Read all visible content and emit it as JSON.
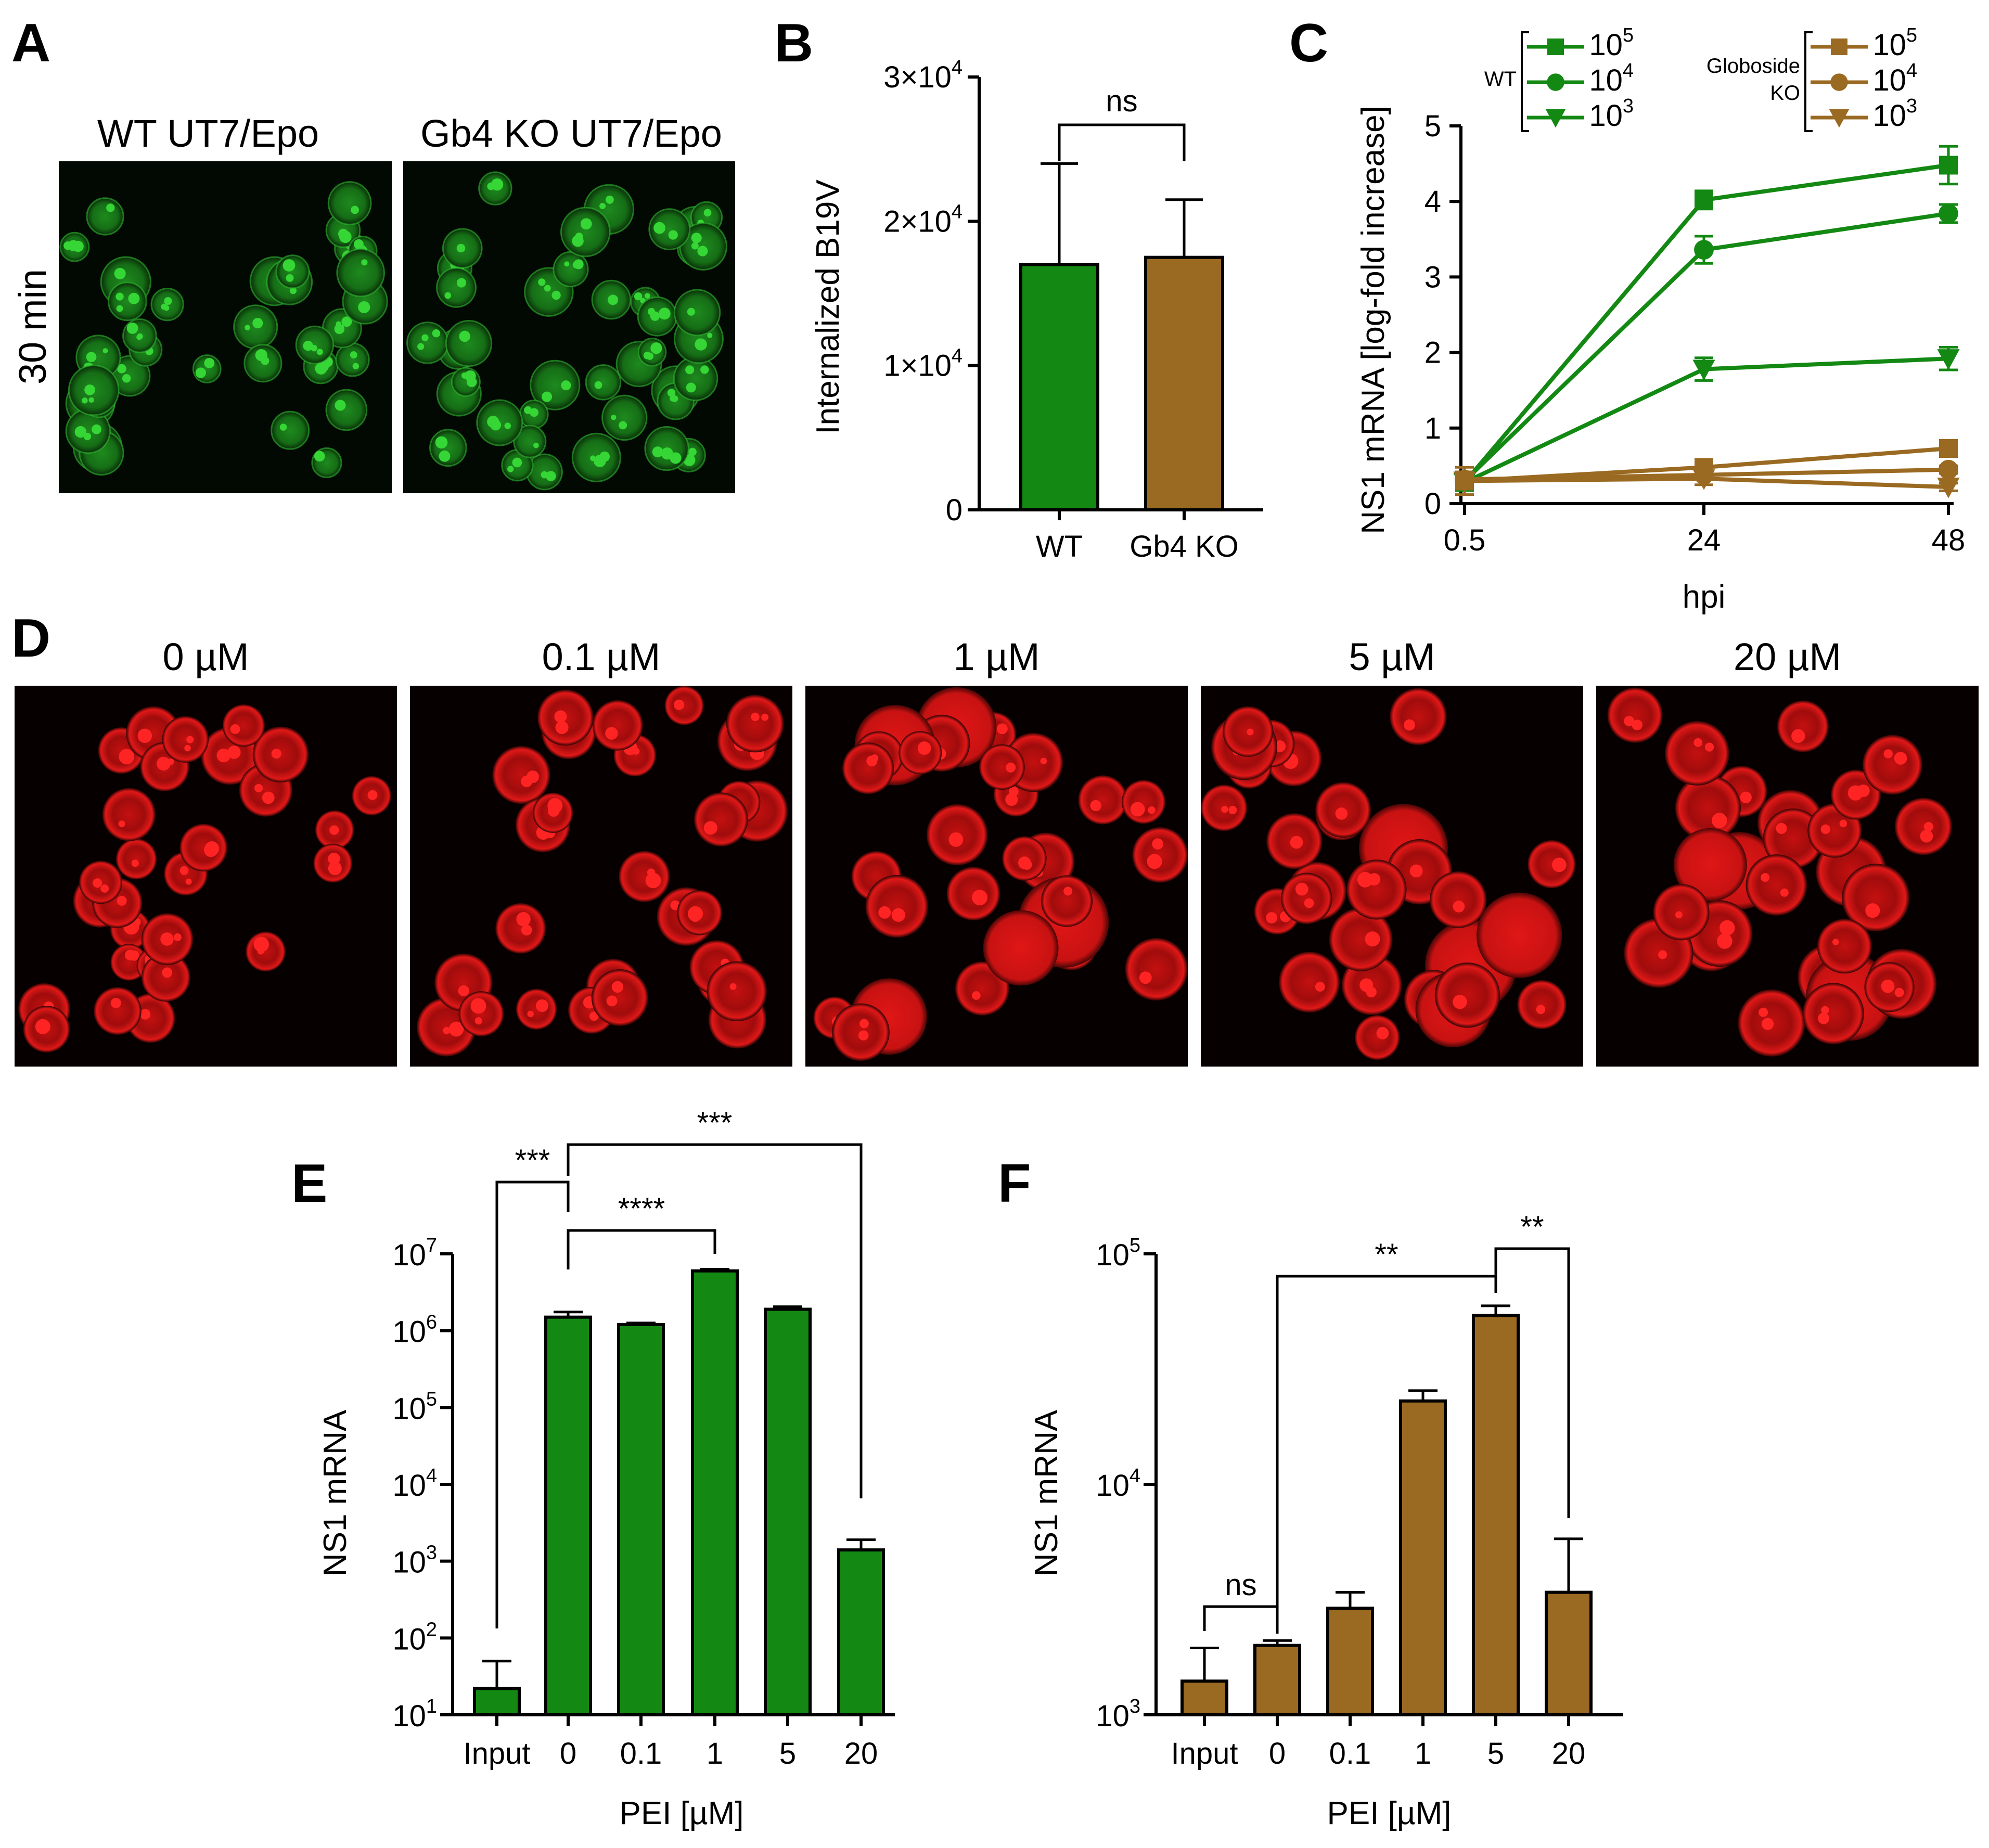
{
  "figure": {
    "panel_labels": [
      "A",
      "B",
      "C",
      "D",
      "E",
      "F"
    ],
    "colors": {
      "wt": "#138913",
      "ko": "#9a6a22",
      "green_cells": "#35d635",
      "red_cells": "#ff2424"
    },
    "panelA": {
      "headers": [
        "WT UT7/Epo",
        "Gb4 KO UT7/Epo"
      ],
      "time_label": "30 min"
    },
    "panelD": {
      "headers": [
        "0 µM",
        "0.1 µM",
        "1 µM",
        "5 µM",
        "20 µM"
      ]
    }
  },
  "chart_data": [
    {
      "id": "B",
      "type": "bar",
      "title": "",
      "categories": [
        "WT",
        "Gb4 KO"
      ],
      "values": [
        17000,
        17500
      ],
      "errors": [
        7000,
        4000
      ],
      "colors": [
        "#138913",
        "#9a6a22"
      ],
      "ylabel": "Internalized B19V",
      "xlabel": "",
      "ylim": [
        0,
        30000
      ],
      "yticks": [
        {
          "value": 0,
          "base": "0",
          "exp": ""
        },
        {
          "value": 10000,
          "base": "1×10",
          "exp": "4"
        },
        {
          "value": 20000,
          "base": "2×10",
          "exp": "4"
        },
        {
          "value": 30000,
          "base": "3×10",
          "exp": "4"
        }
      ],
      "significance": [
        {
          "from": 0,
          "to": 1,
          "label": "ns"
        }
      ]
    },
    {
      "id": "C",
      "type": "line",
      "x": [
        0.5,
        24,
        48
      ],
      "xticks": [
        "0.5",
        "24",
        "48"
      ],
      "xlabel": "hpi",
      "ylabel": "NS1 mRNA [log-fold increase]",
      "ylim": [
        0,
        5
      ],
      "yticks": [
        "0",
        "1",
        "2",
        "3",
        "4",
        "5"
      ],
      "legend_groups": [
        {
          "label": "WT",
          "label_lines": [
            "WT"
          ]
        },
        {
          "label": "Globoside KO",
          "label_lines": [
            "Globoside",
            "KO"
          ]
        }
      ],
      "series": [
        {
          "group": "WT",
          "name": "10^5",
          "base": "10",
          "exp": "5",
          "marker": "square",
          "color": "#138913",
          "values": [
            0.28,
            4.02,
            4.48
          ],
          "errors": [
            0.1,
            0.12,
            0.25
          ]
        },
        {
          "group": "WT",
          "name": "10^4",
          "base": "10",
          "exp": "4",
          "marker": "circle",
          "color": "#138913",
          "values": [
            0.3,
            3.36,
            3.84
          ],
          "errors": [
            0.1,
            0.18,
            0.12
          ]
        },
        {
          "group": "WT",
          "name": "10^3",
          "base": "10",
          "exp": "3",
          "marker": "triangle",
          "color": "#138913",
          "values": [
            0.28,
            1.78,
            1.92
          ],
          "errors": [
            0.1,
            0.15,
            0.15
          ]
        },
        {
          "group": "Globoside KO",
          "name": "10^5",
          "base": "10",
          "exp": "5",
          "marker": "square",
          "color": "#9a6a22",
          "values": [
            0.3,
            0.48,
            0.73
          ],
          "errors": [
            0.1,
            0.05,
            0.05
          ]
        },
        {
          "group": "Globoside KO",
          "name": "10^4",
          "base": "10",
          "exp": "4",
          "marker": "circle",
          "color": "#9a6a22",
          "values": [
            0.32,
            0.38,
            0.45
          ],
          "errors": [
            0.1,
            0.05,
            0.05
          ]
        },
        {
          "group": "Globoside KO",
          "name": "10^3",
          "base": "10",
          "exp": "3",
          "marker": "triangle",
          "color": "#9a6a22",
          "values": [
            0.3,
            0.33,
            0.22
          ],
          "errors": [
            0.18,
            0.08,
            0.05
          ]
        }
      ]
    },
    {
      "id": "E",
      "type": "bar",
      "yscale": "log",
      "categories": [
        "Input",
        "0",
        "0.1",
        "1",
        "5",
        "20"
      ],
      "values": [
        22,
        1500000,
        1200000,
        6000000,
        1900000,
        1400
      ],
      "errors": [
        28,
        250000,
        60000,
        300000,
        150000,
        500
      ],
      "color": "#138913",
      "xlabel": "PEI [µM]",
      "ylabel": "NS1 mRNA",
      "ylim": [
        10,
        10000000
      ],
      "yticks": [
        {
          "value": 10,
          "base": "10",
          "exp": "1"
        },
        {
          "value": 100,
          "base": "10",
          "exp": "2"
        },
        {
          "value": 1000,
          "base": "10",
          "exp": "3"
        },
        {
          "value": 10000,
          "base": "10",
          "exp": "4"
        },
        {
          "value": 100000,
          "base": "10",
          "exp": "5"
        },
        {
          "value": 1000000,
          "base": "10",
          "exp": "6"
        },
        {
          "value": 10000000,
          "base": "10",
          "exp": "7"
        }
      ],
      "significance": [
        {
          "from": 0,
          "to": 1,
          "label": "***"
        },
        {
          "from": 1,
          "to": 3,
          "label": "****"
        },
        {
          "from": 1,
          "to": 5,
          "label": "***"
        }
      ]
    },
    {
      "id": "F",
      "type": "bar",
      "yscale": "log",
      "categories": [
        "Input",
        "0",
        "0.1",
        "1",
        "5",
        "20"
      ],
      "values": [
        1400,
        2000,
        2900,
        23000,
        54000,
        3400
      ],
      "errors": [
        550,
        100,
        500,
        2500,
        5500,
        2400
      ],
      "color": "#9a6a22",
      "xlabel": "PEI [µM]",
      "ylabel": "NS1 mRNA",
      "ylim": [
        1000,
        100000
      ],
      "yticks": [
        {
          "value": 1000,
          "base": "10",
          "exp": "3"
        },
        {
          "value": 10000,
          "base": "10",
          "exp": "4"
        },
        {
          "value": 100000,
          "base": "10",
          "exp": "5"
        }
      ],
      "significance": [
        {
          "from": 0,
          "to": 1,
          "label": "ns"
        },
        {
          "from": 1,
          "to": 4,
          "label": "**"
        },
        {
          "from": 4,
          "to": 5,
          "label": "**"
        }
      ]
    }
  ]
}
